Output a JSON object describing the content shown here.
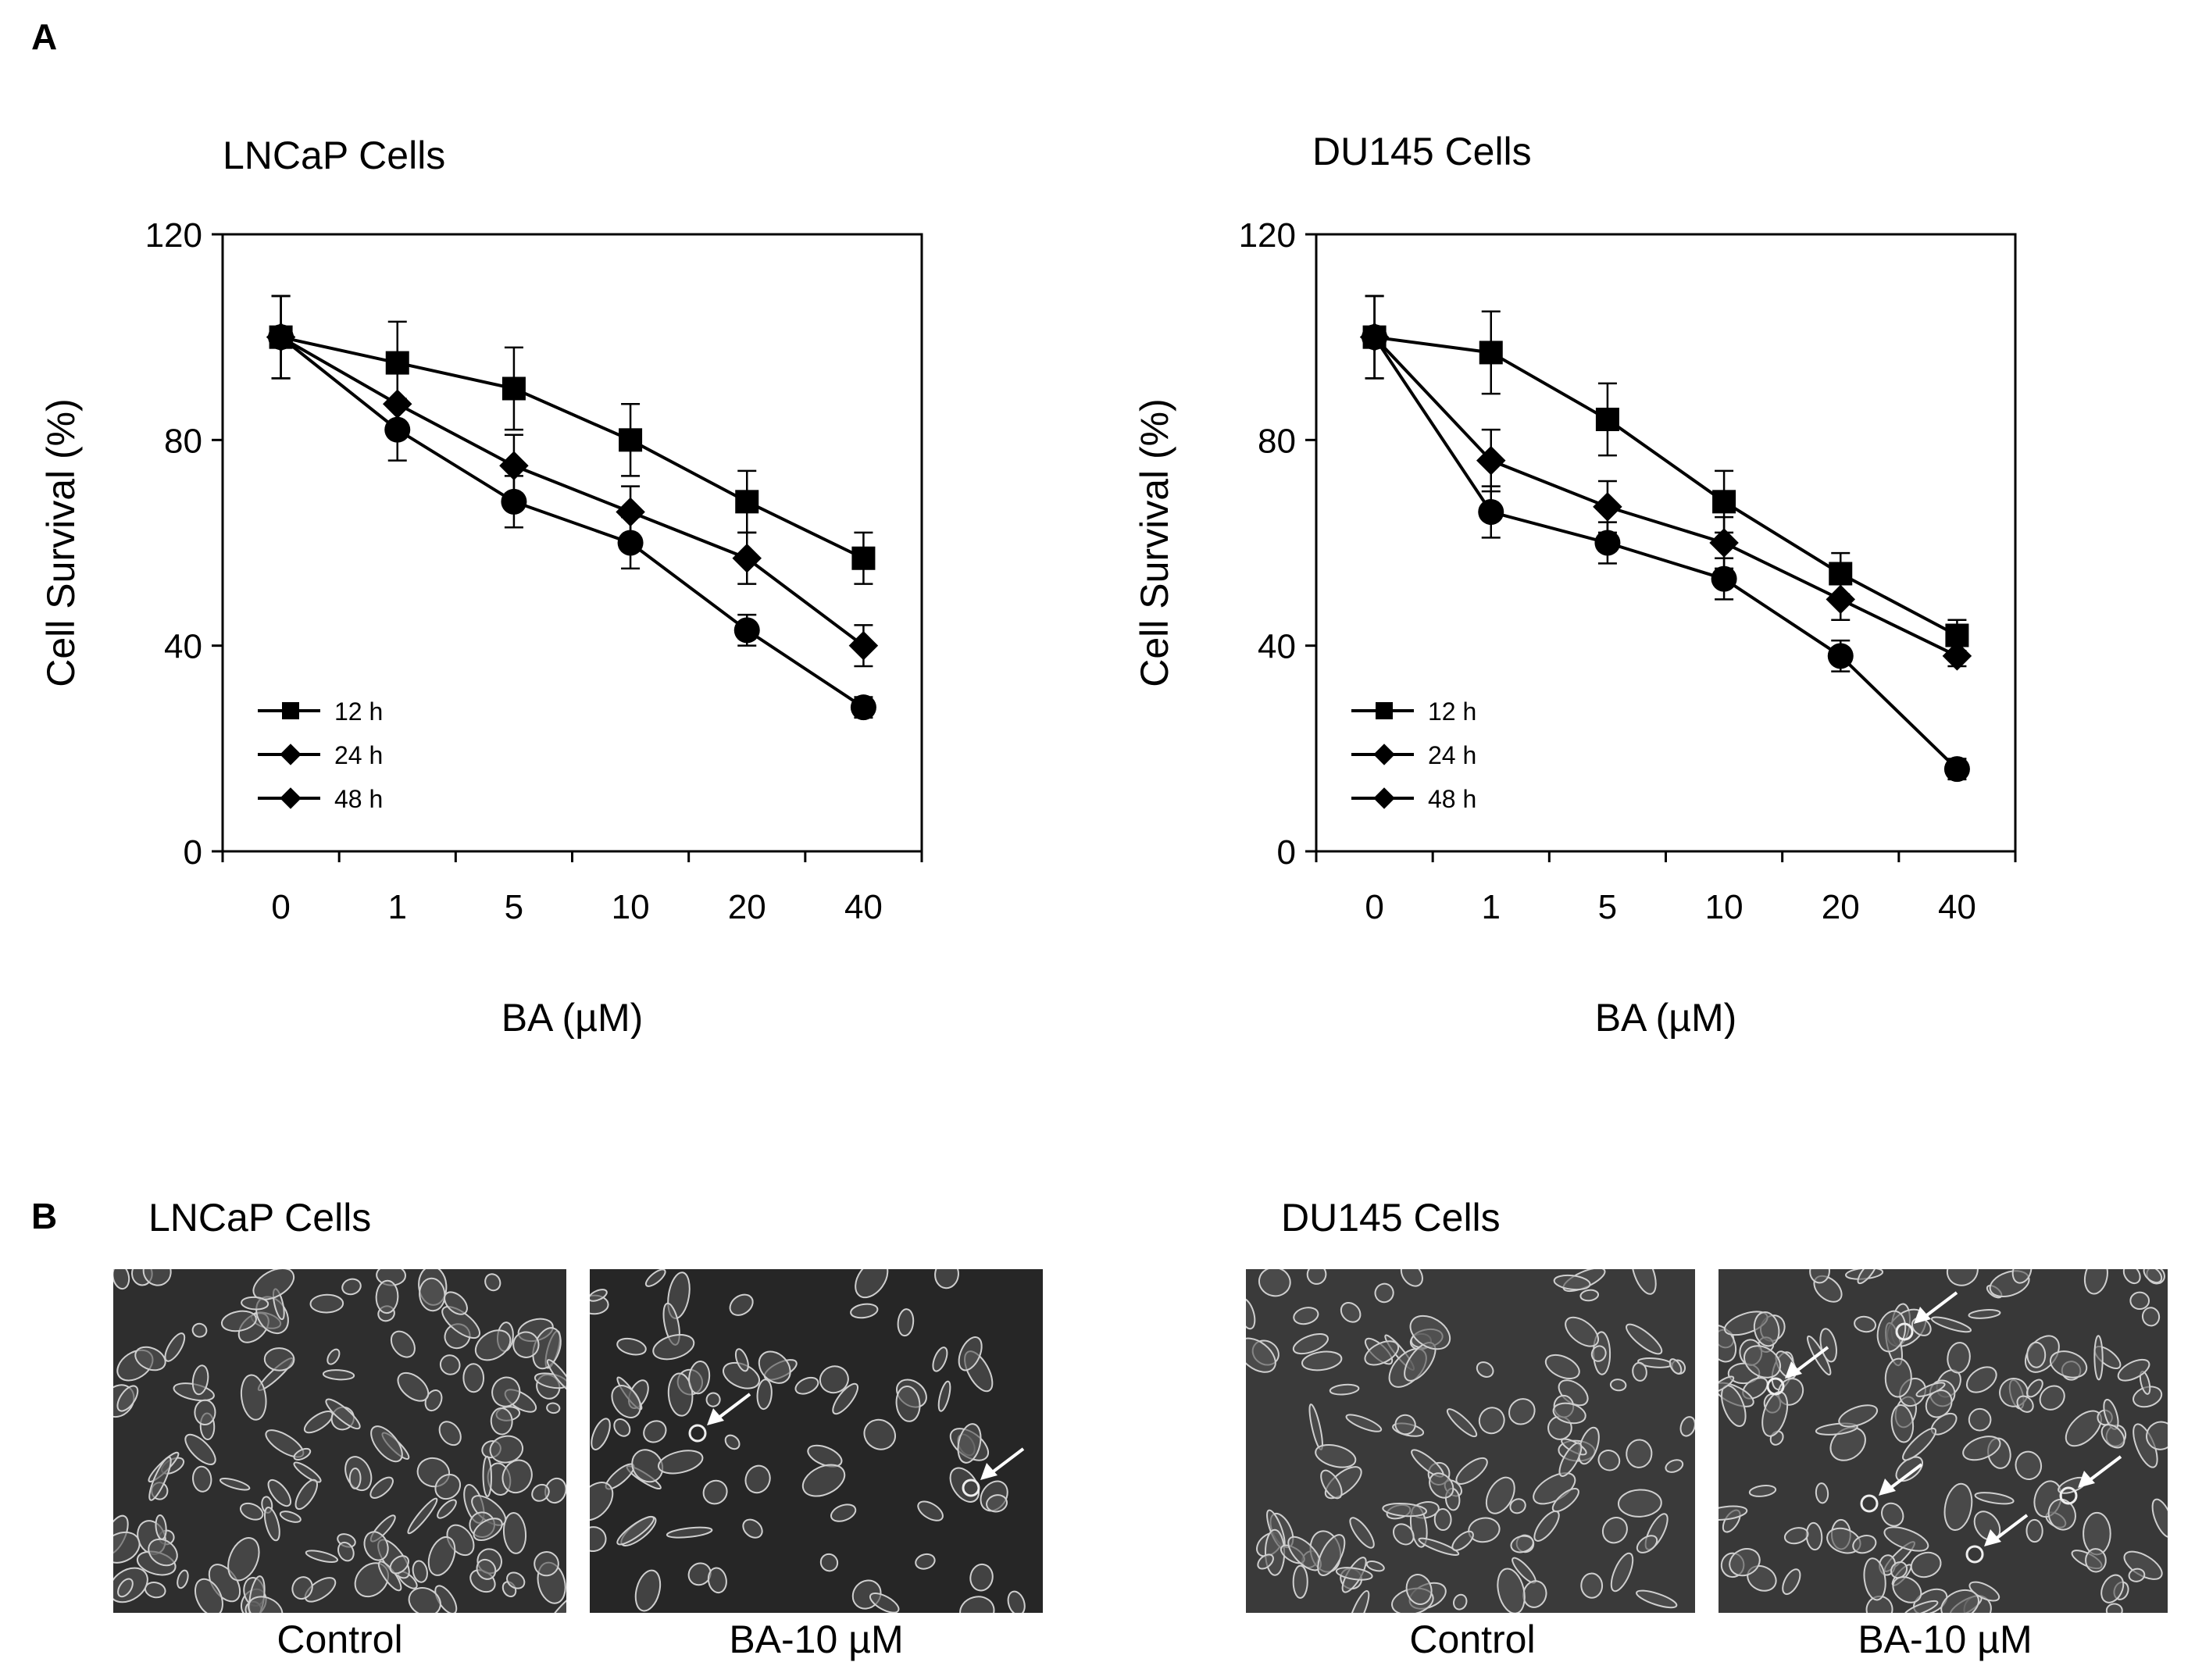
{
  "panel_a_label": "A",
  "panel_b_label": "B",
  "chart_data": [
    {
      "type": "line",
      "title": "LNCaP Cells",
      "xlabel": "BA (µM)",
      "ylabel": "Cell Survival (%)",
      "categories": [
        "0",
        "1",
        "5",
        "10",
        "20",
        "40"
      ],
      "ylim": [
        0,
        120
      ],
      "yticks": [
        "0",
        "40",
        "80",
        "120"
      ],
      "grid": false,
      "legend_position": "bottom-left",
      "series": [
        {
          "name": "12 h",
          "marker": "square",
          "values": [
            100,
            95,
            90,
            80,
            68,
            57
          ],
          "errors": [
            8,
            8,
            8,
            7,
            6,
            5
          ]
        },
        {
          "name": "24 h",
          "marker": "diamond",
          "values": [
            100,
            87,
            75,
            66,
            57,
            40
          ],
          "errors": [
            8,
            6,
            6,
            5,
            5,
            4
          ]
        },
        {
          "name": "48 h",
          "marker": "diamond",
          "values": [
            100,
            82,
            68,
            60,
            43,
            28
          ],
          "errors": [
            8,
            6,
            5,
            5,
            3,
            2
          ]
        }
      ]
    },
    {
      "type": "line",
      "title": "DU145 Cells",
      "xlabel": "BA (µM)",
      "ylabel": "Cell Survival (%)",
      "categories": [
        "0",
        "1",
        "5",
        "10",
        "20",
        "40"
      ],
      "ylim": [
        0,
        120
      ],
      "yticks": [
        "0",
        "40",
        "80",
        "120"
      ],
      "grid": false,
      "legend_position": "bottom-left",
      "series": [
        {
          "name": "12 h",
          "marker": "square",
          "values": [
            100,
            97,
            84,
            68,
            54,
            42
          ],
          "errors": [
            8,
            8,
            7,
            6,
            4,
            3
          ]
        },
        {
          "name": "24 h",
          "marker": "diamond",
          "values": [
            100,
            76,
            67,
            60,
            49,
            38
          ],
          "errors": [
            8,
            6,
            5,
            5,
            4,
            2
          ]
        },
        {
          "name": "48 h",
          "marker": "diamond",
          "values": [
            100,
            66,
            60,
            53,
            38,
            16
          ],
          "errors": [
            8,
            5,
            4,
            4,
            3,
            2
          ]
        }
      ]
    }
  ],
  "photos": {
    "lncap_title": "LNCaP Cells",
    "du145_title": "DU145 Cells",
    "captions": [
      "Control",
      "BA-10 µM",
      "Control",
      "BA-10 µM"
    ]
  }
}
